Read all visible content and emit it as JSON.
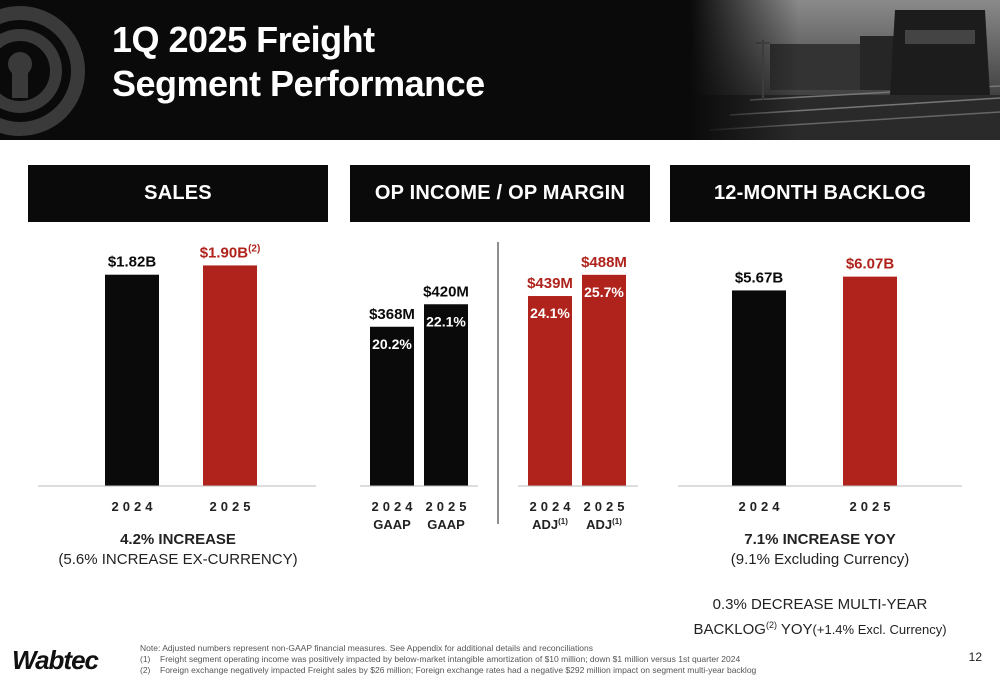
{
  "header": {
    "title_line1": "1Q 2025 Freight",
    "title_line2": "Segment Performance"
  },
  "panels": {
    "sales": {
      "title": "SALES"
    },
    "op": {
      "title": "OP INCOME / OP MARGIN"
    },
    "backlog": {
      "title": "12-MONTH BACKLOG"
    }
  },
  "captions": {
    "sales_line1": "4.2% INCREASE",
    "sales_line2": "(5.6% INCREASE EX-CURRENCY)",
    "backlog_line1": "7.1% INCREASE YOY",
    "backlog_line2": "(9.1% Excluding Currency)",
    "backlog_line3": "0.3% DECREASE  MULTI-YEAR",
    "backlog_line4a": "BACKLOG",
    "backlog_line4_sup": "(2)",
    "backlog_line4b": " YOY",
    "backlog_line4c": "(+1.4% Excl. Currency)"
  },
  "notes": {
    "intro": "Note: Adjusted numbers represent non-GAAP financial measures. See Appendix for additional details and reconciliations",
    "n1_num": "(1)",
    "n1": "Freight segment operating income was positively impacted by below-market intangible amortization of $10 million; down $1 million versus 1st quarter 2024",
    "n2_num": "(2)",
    "n2": "Foreign exchange negatively impacted Freight sales by $26 million; Foreign exchange rates had a negative $292 million impact on segment multi-year backlog"
  },
  "brand": "Wabtec",
  "page_number": "12",
  "colors": {
    "black": "#0a0a0a",
    "red": "#b0231c"
  },
  "chart_data": [
    {
      "type": "bar",
      "id": "sales",
      "categories": [
        "2024",
        "2025"
      ],
      "values": [
        1.82,
        1.9
      ],
      "units": "B",
      "labels": [
        "$1.82B",
        "$1.90B"
      ],
      "label_sups": [
        "",
        "(2)"
      ],
      "colors": [
        "#0a0a0a",
        "#b0231c"
      ],
      "ylim": [
        0,
        2.05
      ]
    },
    {
      "type": "bar",
      "id": "op_income",
      "categories": [
        "2024",
        "2025",
        "2024",
        "2025"
      ],
      "subcategories": [
        "GAAP",
        "GAAP",
        "ADJ",
        "ADJ"
      ],
      "subcategory_sups": [
        "",
        "",
        "(1)",
        "(1)"
      ],
      "values": [
        368,
        420,
        439,
        488
      ],
      "units": "M",
      "labels": [
        "$368M",
        "$420M",
        "$439M",
        "$488M"
      ],
      "margins": [
        "20.2%",
        "22.1%",
        "24.1%",
        "25.7%"
      ],
      "colors": [
        "#0a0a0a",
        "#0a0a0a",
        "#b0231c",
        "#b0231c"
      ],
      "ylim": [
        0,
        550
      ]
    },
    {
      "type": "bar",
      "id": "backlog",
      "categories": [
        "2024",
        "2025"
      ],
      "values": [
        5.67,
        6.07
      ],
      "units": "B",
      "labels": [
        "$5.67B",
        "$6.07B"
      ],
      "colors": [
        "#0a0a0a",
        "#b0231c"
      ],
      "ylim": [
        0,
        6.9
      ]
    }
  ]
}
